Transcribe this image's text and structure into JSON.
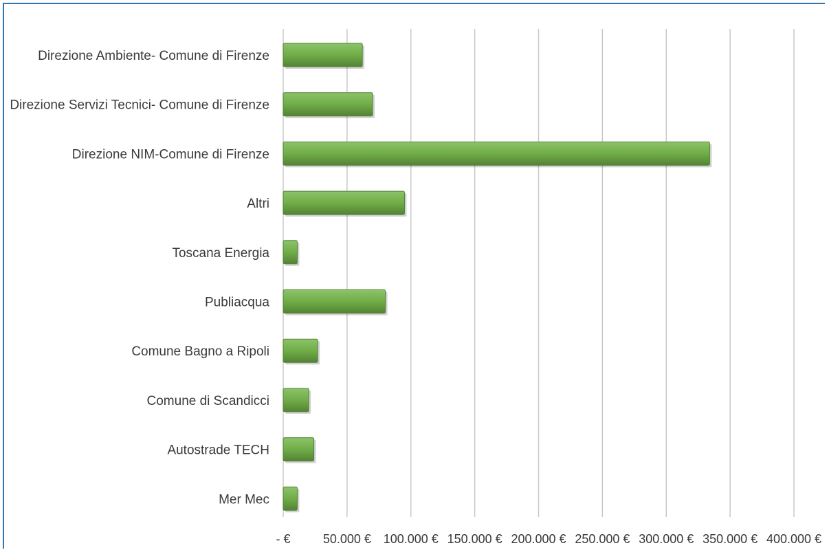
{
  "chart_data": {
    "type": "bar",
    "orientation": "horizontal",
    "title": "",
    "xlabel": "",
    "ylabel": "",
    "categories": [
      "Direzione Ambiente- Comune di Firenze",
      "Direzione Servizi Tecnici- Comune di Firenze",
      "Direzione NIM-Comune di Firenze",
      "Altri",
      "Toscana Energia",
      "Publiacqua",
      "Comune Bagno a Ripoli",
      "Comune di Scandicci",
      "Autostrade TECH",
      "Mer Mec"
    ],
    "values": [
      62000,
      70000,
      334000,
      95000,
      11000,
      80000,
      27000,
      20000,
      24000,
      11000
    ],
    "xlim": [
      0,
      400000
    ],
    "tick_values": [
      0,
      50000,
      100000,
      150000,
      200000,
      250000,
      300000,
      350000,
      400000
    ],
    "tick_labels": [
      "- €",
      "50.000 €",
      "100.000 €",
      "150.000 €",
      "200.000 €",
      "250.000 €",
      "300.000 €",
      "350.000 €",
      "400.000 €"
    ],
    "grid": "vertical",
    "legend": "none",
    "colors": {
      "bar": "#70ad47",
      "bar_dark": "#548235",
      "grid": "#c8c8c8",
      "frame": "#2e75b6"
    }
  }
}
